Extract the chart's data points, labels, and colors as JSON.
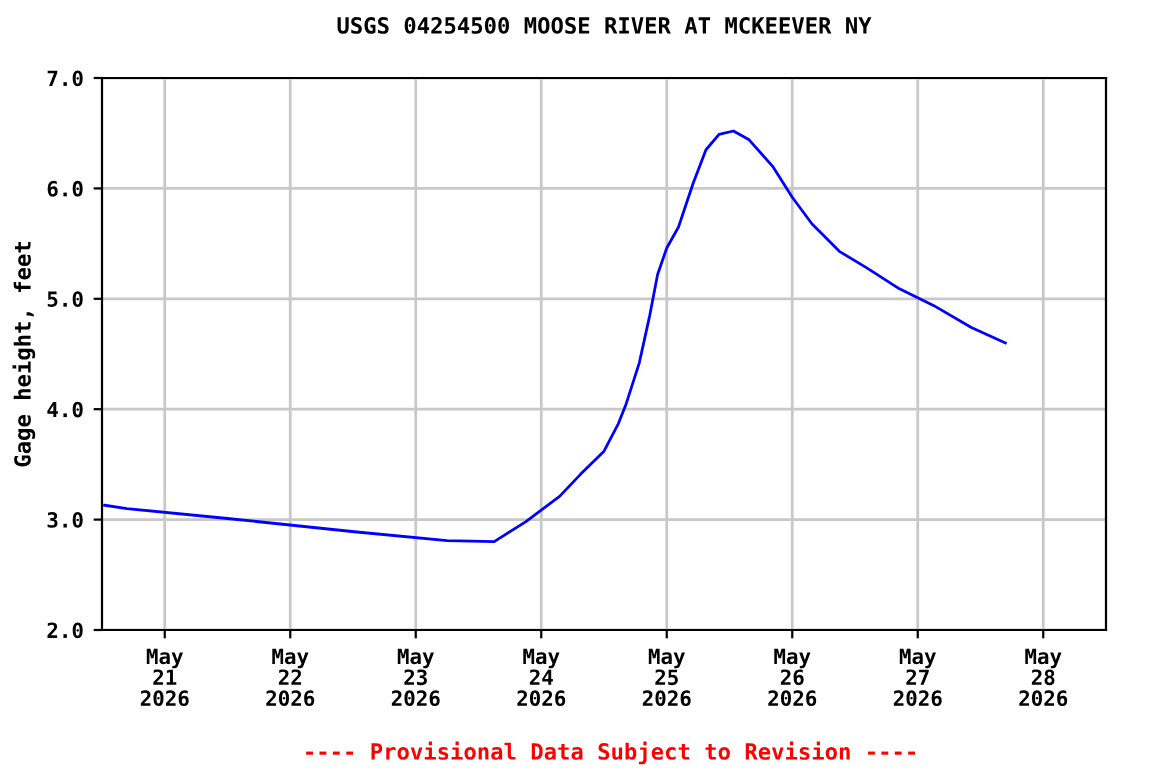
{
  "chart_data": {
    "type": "line",
    "title": "USGS 04254500 MOOSE RIVER AT MCKEEVER NY",
    "ylabel": "Gage height, feet",
    "x": [
      "2026-05-20T12:30",
      "2026-05-20T16:45",
      "2026-05-21T12:00",
      "2026-05-22T12:15",
      "2026-05-23T06:00",
      "2026-05-23T15:00",
      "2026-05-23T21:00",
      "2026-05-24T03:30",
      "2026-05-24T07:30",
      "2026-05-24T12:00",
      "2026-05-24T14:45",
      "2026-05-24T16:15",
      "2026-05-24T18:45",
      "2026-05-24T20:45",
      "2026-05-24T22:15",
      "2026-05-25T00:00",
      "2026-05-25T02:15",
      "2026-05-25T05:00",
      "2026-05-25T07:30",
      "2026-05-25T10:00",
      "2026-05-25T12:45",
      "2026-05-25T15:45",
      "2026-05-25T20:15",
      "2026-05-26T00:00",
      "2026-05-26T03:45",
      "2026-05-26T09:00",
      "2026-05-26T14:15",
      "2026-05-26T20:30",
      "2026-05-27T03:00",
      "2026-05-27T10:15",
      "2026-05-27T16:45"
    ],
    "series": [
      {
        "color": "#0000ff",
        "values": [
          3.13,
          3.1,
          3.01,
          2.89,
          2.81,
          2.8,
          2.98,
          3.21,
          3.41,
          3.62,
          3.87,
          4.05,
          4.42,
          4.85,
          5.22,
          5.46,
          5.65,
          6.04,
          6.35,
          6.49,
          6.52,
          6.44,
          6.2,
          5.92,
          5.68,
          5.43,
          5.28,
          5.09,
          4.94,
          4.74,
          4.6
        ]
      }
    ],
    "xlim": [
      "2026-05-20T12:00",
      "2026-05-28T12:00"
    ],
    "xticks": [
      {
        "value": "2026-05-21",
        "label": "May\n21\n2026"
      },
      {
        "value": "2026-05-22",
        "label": "May\n22\n2026"
      },
      {
        "value": "2026-05-23",
        "label": "May\n23\n2026"
      },
      {
        "value": "2026-05-24",
        "label": "May\n24\n2026"
      },
      {
        "value": "2026-05-25",
        "label": "May\n25\n2026"
      },
      {
        "value": "2026-05-26",
        "label": "May\n26\n2026"
      },
      {
        "value": "2026-05-27",
        "label": "May\n27\n2026"
      },
      {
        "value": "2026-05-28",
        "label": "May\n28\n2026"
      }
    ],
    "ylim": [
      2.0,
      7.0
    ],
    "yticks": [
      {
        "value": 2,
        "label": "2.0"
      },
      {
        "value": 3,
        "label": "3.0"
      },
      {
        "value": 4,
        "label": "4.0"
      },
      {
        "value": 5,
        "label": "5.0"
      },
      {
        "value": 6,
        "label": "6.0"
      },
      {
        "value": 7,
        "label": "7.0"
      }
    ],
    "grid": true,
    "marker": "none",
    "line_style": "solid",
    "annotations": [
      "---- Provisional Data Subject to Revision ----"
    ]
  }
}
